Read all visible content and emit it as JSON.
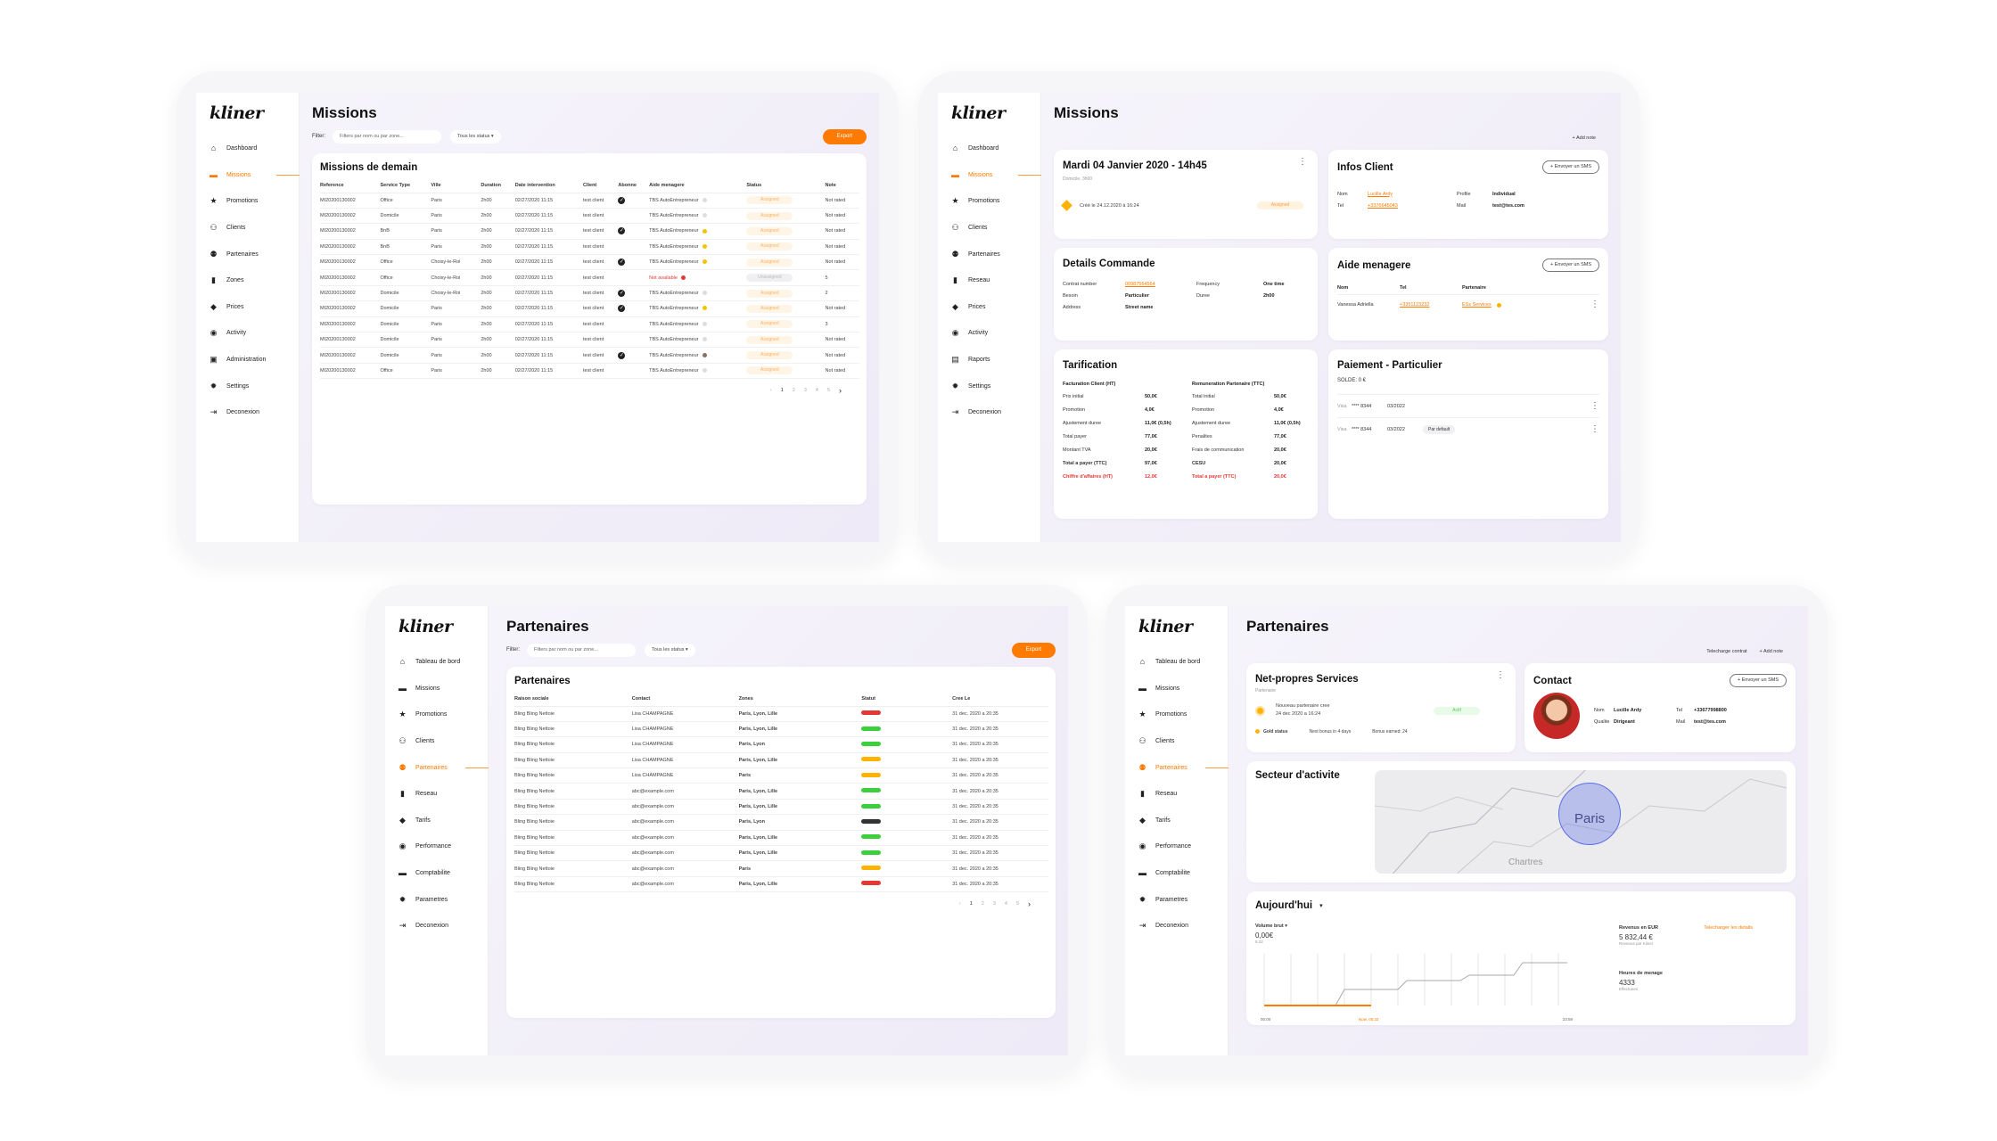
{
  "brand": "kliner",
  "frames": {
    "missions_list": {
      "title": "Missions",
      "nav": [
        {
          "label": "Dashboard",
          "icon": "home-icon"
        },
        {
          "label": "Missions",
          "icon": "briefcase-icon",
          "active": true
        },
        {
          "label": "Promotions",
          "icon": "star-icon"
        },
        {
          "label": "Clients",
          "icon": "users-icon"
        },
        {
          "label": "Partenaires",
          "icon": "partners-icon"
        },
        {
          "label": "Zones",
          "icon": "map-icon"
        },
        {
          "label": "Prices",
          "icon": "tag-icon"
        },
        {
          "label": "Activity",
          "icon": "activity-icon"
        },
        {
          "label": "Administration",
          "icon": "admin-icon"
        },
        {
          "label": "Settings",
          "icon": "gear-icon"
        },
        {
          "label": "Deconexion",
          "icon": "logout-icon"
        }
      ],
      "filter_label": "Filter:",
      "filter_placeholder": "Filters par nom ou par zone...",
      "status_select": "Tous les status",
      "export": "Export",
      "table_title": "Missions de demain",
      "columns": [
        "Reference",
        "Service Type",
        "Ville",
        "Duration",
        "Date intervention",
        "Client",
        "Abonne",
        "Aide menagere",
        "Status",
        "Note"
      ],
      "rows": [
        {
          "ref": "MI20200130002",
          "type": "Office",
          "ville": "Paris",
          "dur": "2h00",
          "date": "02/27/2020 11:15",
          "client": "test client",
          "abonne": true,
          "aide": "TBS AutoEntrepreneur",
          "dot": "#ddd",
          "status": "Assigned",
          "note": "Not rated"
        },
        {
          "ref": "MI20200130002",
          "type": "Domicile",
          "ville": "Paris",
          "dur": "2h00",
          "date": "02/27/2020 11:15",
          "client": "test client",
          "abonne": false,
          "aide": "TBS AutoEntrepreneur",
          "dot": "#ddd",
          "status": "Assigned",
          "note": "Not rated"
        },
        {
          "ref": "MI20200130002",
          "type": "BnB",
          "ville": "Paris",
          "dur": "2h00",
          "date": "02/27/2020 11:15",
          "client": "test client",
          "abonne": true,
          "aide": "TBS AutoEntrepreneur",
          "dot": "#f5c400",
          "status": "Assigned",
          "note": "Not rated"
        },
        {
          "ref": "MI20200130002",
          "type": "BnB",
          "ville": "Paris",
          "dur": "2h00",
          "date": "02/27/2020 11:15",
          "client": "test client",
          "abonne": false,
          "aide": "TBS AutoEntrepreneur",
          "dot": "#f5c400",
          "status": "Assigned",
          "note": "Not rated"
        },
        {
          "ref": "MI20200130002",
          "type": "Office",
          "ville": "Choisy-le-Roi",
          "dur": "2h00",
          "date": "02/27/2020 11:15",
          "client": "test client",
          "abonne": true,
          "aide": "TBS AutoEntrepreneur",
          "dot": "#f5c400",
          "status": "Assigned",
          "note": "Not rated"
        },
        {
          "ref": "MI20200130002",
          "type": "Office",
          "ville": "Choisy-le-Roi",
          "dur": "2h00",
          "date": "02/27/2020 11:15",
          "client": "test client",
          "abonne": false,
          "aide": "Not available",
          "dot": "#e53935",
          "status": "Unassigned",
          "note": "5"
        },
        {
          "ref": "MI20200130002",
          "type": "Domicile",
          "ville": "Choisy-le-Roi",
          "dur": "2h00",
          "date": "02/27/2020 11:15",
          "client": "test client",
          "abonne": true,
          "aide": "TBS AutoEntrepreneur",
          "dot": "#ddd",
          "status": "Assigned",
          "note": "2"
        },
        {
          "ref": "MI20200130002",
          "type": "Domicile",
          "ville": "Paris",
          "dur": "2h00",
          "date": "02/27/2020 11:15",
          "client": "test client",
          "abonne": true,
          "aide": "TBS AutoEntrepreneur",
          "dot": "#f5c400",
          "status": "Assigned",
          "note": "Not rated"
        },
        {
          "ref": "MI20200130002",
          "type": "Domicile",
          "ville": "Paris",
          "dur": "2h00",
          "date": "02/27/2020 11:15",
          "client": "test client",
          "abonne": false,
          "aide": "TBS AutoEntrepreneur",
          "dot": "#ddd",
          "status": "Assigned",
          "note": "3"
        },
        {
          "ref": "MI20200130002",
          "type": "Domicile",
          "ville": "Paris",
          "dur": "2h00",
          "date": "02/27/2020 11:15",
          "client": "test client",
          "abonne": false,
          "aide": "TBS AutoEntrepreneur",
          "dot": "#ddd",
          "status": "Assigned",
          "note": "Not rated"
        },
        {
          "ref": "MI20200130002",
          "type": "Domicile",
          "ville": "Paris",
          "dur": "2h00",
          "date": "02/27/2020 11:15",
          "client": "test client",
          "abonne": true,
          "aide": "TBS AutoEntrepreneur",
          "dot": "#8d6e63",
          "status": "Assigned",
          "note": "Not rated"
        },
        {
          "ref": "MI20200130002",
          "type": "Office",
          "ville": "Paris",
          "dur": "2h00",
          "date": "02/27/2020 11:15",
          "client": "test client",
          "abonne": false,
          "aide": "TBS AutoEntrepreneur",
          "dot": "#ddd",
          "status": "Assigned",
          "note": "Not rated"
        }
      ],
      "pages": [
        "1",
        "2",
        "3",
        "4",
        "5"
      ]
    },
    "mission_detail": {
      "title": "Missions",
      "nav": [
        {
          "label": "Dashboard",
          "icon": "home-icon"
        },
        {
          "label": "Missions",
          "icon": "briefcase-icon",
          "active": true
        },
        {
          "label": "Promotions",
          "icon": "star-icon"
        },
        {
          "label": "Clients",
          "icon": "users-icon"
        },
        {
          "label": "Partenaires",
          "icon": "partners-icon"
        },
        {
          "label": "Reseau",
          "icon": "map-icon"
        },
        {
          "label": "Prices",
          "icon": "tag-icon"
        },
        {
          "label": "Activity",
          "icon": "activity-icon"
        },
        {
          "label": "Raports",
          "icon": "report-icon"
        },
        {
          "label": "Settings",
          "icon": "gear-icon"
        },
        {
          "label": "Deconexion",
          "icon": "logout-icon"
        }
      ],
      "add_note": "+ Add note",
      "mission_date": "Mardi 04 Janvier 2020 - 14h45",
      "mission_sub": "Domicile, 3h00",
      "created": "Créé le 24.12.2020 à 16:24",
      "status": "Assigned",
      "infos_title": "Infos Client",
      "sms": "+ Envoyer un SMS",
      "infos": {
        "nom_label": "Nom",
        "nom": "Lucille Ardy",
        "tel_label": "Tel",
        "tel": "+3376645043",
        "profile_label": "Profile",
        "profile": "Individual",
        "mail_label": "Mail",
        "mail": "test@tes.com"
      },
      "details_title": "Details Commande",
      "details": {
        "contract_label": "Contrat number",
        "contract": "00987564564",
        "freq_label": "Frequency",
        "freq": "One time",
        "besoin_label": "Besoin",
        "besoin": "Particulier",
        "duree_label": "Duree",
        "duree": "2h00",
        "adresse_label": "Address",
        "adresse": "Street name"
      },
      "aide_title": "Aide menagere",
      "aide_cols": [
        "Nom",
        "Tel",
        "Partenaire"
      ],
      "aide_row": {
        "nom": "Vanessa Adriella",
        "tel": "+3351123232",
        "partenaire": "ESs Services"
      },
      "tarif_title": "Tarification",
      "tarif_left_title": "Facturation Client (HT)",
      "tarif_left": [
        [
          "Prix initial",
          "50,0€"
        ],
        [
          "Promotion",
          "4,0€"
        ],
        [
          "Ajustement duree",
          "11,0€ (0,5h)"
        ],
        [
          "Total payer",
          "77,0€"
        ],
        [
          "Montant TVA",
          "20,0€"
        ],
        [
          "Total a payer (TTC)",
          "97,0€"
        ],
        [
          "Chiffre d'affaires (HT)",
          "12,0€"
        ]
      ],
      "tarif_right_title": "Remuneration Partenaire (TTC)",
      "tarif_right": [
        [
          "Total initial",
          "50,0€"
        ],
        [
          "Promotion",
          "4,0€"
        ],
        [
          "Ajustement duree",
          "11,0€ (0,5h)"
        ],
        [
          "Penalites",
          "77,0€"
        ],
        [
          "Frais de communication",
          "20,0€"
        ],
        [
          "CESU",
          "20,0€"
        ],
        [
          "Total a payer (TTC)",
          "20,0€"
        ]
      ],
      "paiement_title": "Paiement - Particulier",
      "solde": "SOLDE: 0 €",
      "cards": [
        {
          "brand": "Visa",
          "num": "**** 8344",
          "exp": "03/2022",
          "tag": ""
        },
        {
          "brand": "Visa",
          "num": "**** 8344",
          "exp": "03/2022",
          "tag": "Par default"
        }
      ]
    },
    "partenaires_list": {
      "title": "Partenaires",
      "nav": [
        {
          "label": "Tableau de bord",
          "icon": "home-icon"
        },
        {
          "label": "Missions",
          "icon": "briefcase-icon"
        },
        {
          "label": "Promotions",
          "icon": "star-icon"
        },
        {
          "label": "Clients",
          "icon": "users-icon"
        },
        {
          "label": "Partenaires",
          "icon": "partners-icon",
          "active": true
        },
        {
          "label": "Reseau",
          "icon": "map-icon"
        },
        {
          "label": "Tarifs",
          "icon": "tag-icon"
        },
        {
          "label": "Performance",
          "icon": "activity-icon"
        },
        {
          "label": "Comptabilite",
          "icon": "briefcase-icon"
        },
        {
          "label": "Parametres",
          "icon": "gear-icon"
        },
        {
          "label": "Deconexion",
          "icon": "logout-icon"
        }
      ],
      "filter_label": "Filter:",
      "filter_placeholder": "Filters par nom ou par zone...",
      "status_select": "Tous les status",
      "export": "Export",
      "table_title": "Partenaires",
      "columns": [
        "Raison sociale",
        "Contact",
        "Zones",
        "Statut",
        "Cree Le"
      ],
      "rows": [
        {
          "rs": "Bling Bling Nettoie",
          "contact": "Lisa CHAMPAGNE",
          "zones": "Paris, Lyon, Lille",
          "color": "#e53935",
          "date": "31 dec. 2020 a 20:35"
        },
        {
          "rs": "Bling Bling Nettoie",
          "contact": "Lisa CHAMPAGNE",
          "zones": "Paris, Lyon, Lille",
          "color": "#3ccf3c",
          "date": "31 dec. 2020 a 20:35"
        },
        {
          "rs": "Bling Bling Nettoie",
          "contact": "Lisa CHAMPAGNE",
          "zones": "Paris, Lyon",
          "color": "#3ccf3c",
          "date": "31 dec. 2020 a 20:35"
        },
        {
          "rs": "Bling Bling Nettoie",
          "contact": "Lisa CHAMPAGNE",
          "zones": "Paris, Lyon, Lille",
          "color": "#ffb300",
          "date": "31 dec. 2020 a 20:35"
        },
        {
          "rs": "Bling Bling Nettoie",
          "contact": "Lisa CHAMPAGNE",
          "zones": "Paris",
          "color": "#ffb300",
          "date": "31 dec. 2020 a 20:35"
        },
        {
          "rs": "Bling Bling Nettoie",
          "contact": "abc@example.com",
          "zones": "Paris, Lyon, Lille",
          "color": "#3ccf3c",
          "date": "31 dec. 2020 a 20:35"
        },
        {
          "rs": "Bling Bling Nettoie",
          "contact": "abc@example.com",
          "zones": "Paris, Lyon, Lille",
          "color": "#3ccf3c",
          "date": "31 dec. 2020 a 20:35"
        },
        {
          "rs": "Bling Bling Nettoie",
          "contact": "abc@example.com",
          "zones": "Paris, Lyon",
          "color": "#333333",
          "date": "31 dec. 2020 a 20:35"
        },
        {
          "rs": "Bling Bling Nettoie",
          "contact": "abc@example.com",
          "zones": "Paris, Lyon, Lille",
          "color": "#3ccf3c",
          "date": "31 dec. 2020 a 20:35"
        },
        {
          "rs": "Bling Bling Nettoie",
          "contact": "abc@example.com",
          "zones": "Paris, Lyon, Lille",
          "color": "#3ccf3c",
          "date": "31 dec. 2020 a 20:35"
        },
        {
          "rs": "Bling Bling Nettoie",
          "contact": "abc@example.com",
          "zones": "Paris",
          "color": "#ffb300",
          "date": "31 dec. 2020 a 20:35"
        },
        {
          "rs": "Bling Bling Nettoie",
          "contact": "abc@example.com",
          "zones": "Paris, Lyon, Lille",
          "color": "#e53935",
          "date": "31 dec. 2020 a 20:35"
        }
      ],
      "pages": [
        "1",
        "2",
        "3",
        "4",
        "5"
      ]
    },
    "partenaire_detail": {
      "title": "Partenaires",
      "nav": [
        {
          "label": "Tableau de bord",
          "icon": "home-icon"
        },
        {
          "label": "Missions",
          "icon": "briefcase-icon"
        },
        {
          "label": "Promotions",
          "icon": "star-icon"
        },
        {
          "label": "Clients",
          "icon": "users-icon"
        },
        {
          "label": "Partenaires",
          "icon": "partners-icon",
          "active": true
        },
        {
          "label": "Reseau",
          "icon": "map-icon"
        },
        {
          "label": "Tarifs",
          "icon": "tag-icon"
        },
        {
          "label": "Performance",
          "icon": "activity-icon"
        },
        {
          "label": "Comptabilite",
          "icon": "briefcase-icon"
        },
        {
          "label": "Parametres",
          "icon": "gear-icon"
        },
        {
          "label": "Deconexion",
          "icon": "logout-icon"
        }
      ],
      "download": "Telecharge contrat",
      "add_note": "+ Add note",
      "company": "Net-propres Services",
      "company_sub": "Partenaire",
      "new_partner": "Nouveau partenaire cree",
      "new_date": "24 dec 2020 a 16:24",
      "status": "Actif",
      "gold": "Gold status",
      "next_bonus": "Next bonus in 4 days",
      "bonus_earned": "Bonus earned: 24",
      "contact_title": "Contact",
      "sms": "+ Envoyer un SMS",
      "contact": {
        "nom_label": "Nom",
        "nom": "Lucille Ardy",
        "qual_label": "Qualite",
        "qual": "Dirigeant",
        "tel_label": "Tel",
        "tel": "+33677998800",
        "mail_label": "Mail",
        "mail": "test@tes.com"
      },
      "secteur_title": "Secteur d'activite",
      "map_city": "Paris",
      "map_city2": "Chartres",
      "today_title": "Aujourd'hui",
      "volume_label": "Volume brut",
      "volume_value": "0,00€",
      "volume_sub": "5.22",
      "axis_start": "00:00",
      "axis_now": "Now, 05:32",
      "axis_end": "23:59",
      "revenue_label": "Revenus en EUR",
      "revenue_value": "5 832,44 €",
      "revenue_sub": "Revenus par Kliner",
      "details_link": "Telecharger les details",
      "hours_label": "Heures de menage",
      "hours_value": "4333",
      "hours_sub": "Effectuees"
    }
  }
}
